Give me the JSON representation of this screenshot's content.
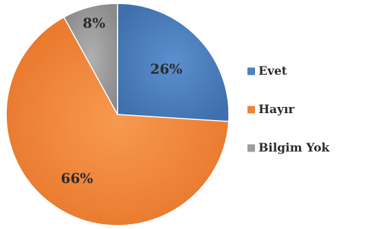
{
  "chart_data": {
    "type": "pie",
    "categories": [
      "Evet",
      "Hayır",
      "Bilgim Yok"
    ],
    "values": [
      26,
      66,
      8
    ],
    "labels": [
      "26%",
      "66%",
      "8%"
    ],
    "colors": [
      "#4F81BD",
      "#F0843A",
      "#9E9E9E"
    ],
    "legend_position": "right",
    "title": ""
  }
}
